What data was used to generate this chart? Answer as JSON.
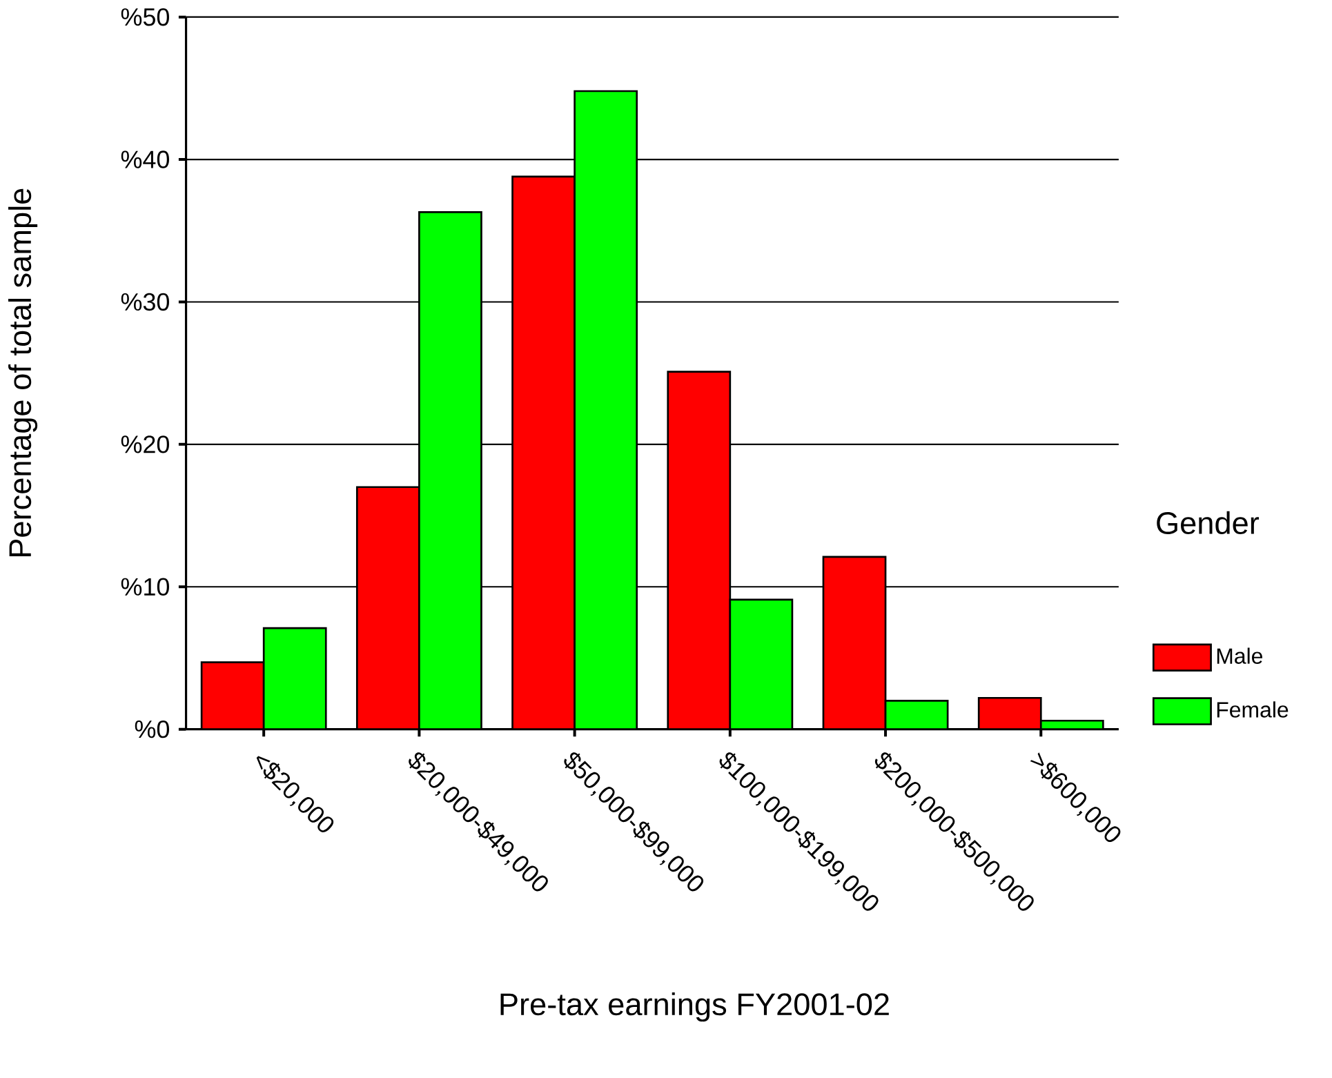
{
  "chart_data": {
    "type": "bar",
    "xlabel": "Pre-tax earnings FY2001-02",
    "ylabel": "Percentage of total sample",
    "legend_title": "Gender",
    "categories": [
      "<$20,000",
      "$20,000-$49,000",
      "$50,000-$99,000",
      "$100,000-$199,000",
      "$200,000-$500,000",
      ">$600,000"
    ],
    "series": [
      {
        "name": "Male",
        "color": "#ff0000",
        "values": [
          4.7,
          17.0,
          38.8,
          25.1,
          12.1,
          2.2
        ]
      },
      {
        "name": "Female",
        "color": "#00ff00",
        "values": [
          7.1,
          36.3,
          44.8,
          9.1,
          2.0,
          0.6
        ]
      }
    ],
    "ylim": [
      0,
      50
    ],
    "yticks": [
      {
        "value": 0,
        "label": "%0"
      },
      {
        "value": 10,
        "label": "%10"
      },
      {
        "value": 20,
        "label": "%20"
      },
      {
        "value": 30,
        "label": "%30"
      },
      {
        "value": 40,
        "label": "%40"
      },
      {
        "value": 50,
        "label": "%50"
      }
    ],
    "grid": "y",
    "legend": "right"
  }
}
